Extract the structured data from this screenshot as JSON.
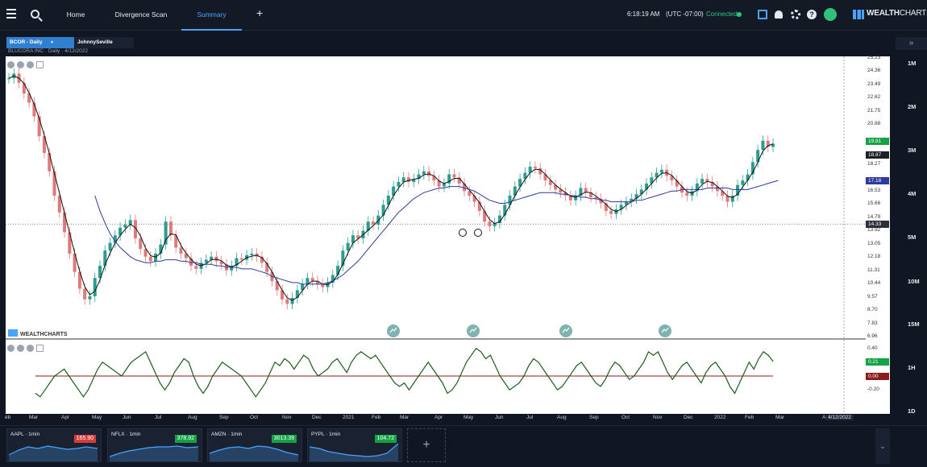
{
  "topbar": {
    "nav": [
      "Home",
      "Divergence Scan",
      "Summary"
    ],
    "active_nav": "Summary",
    "clock": "6:18:19 AM",
    "timezone": "(UTC -07:00)",
    "connection": "Connected",
    "brand_a": "WEALTH",
    "brand_b": "CHARTS",
    "icons": [
      "menu-icon",
      "search-icon",
      "plus-icon",
      "save-icon",
      "bell-icon",
      "gear-icon",
      "help-icon",
      "avatar-icon"
    ]
  },
  "chart_tabs": {
    "active": "BCOR - Daily",
    "inactive": "JohnnySeville"
  },
  "meta": "BLUCORA INC · Daily · 4/12/2022",
  "watermark": "WEALTHCHARTS",
  "y_axis": {
    "ticks": [
      "25.23",
      "24.36",
      "23.49",
      "22.62",
      "21.75",
      "20.88",
      "18.27",
      "16.53",
      "15.66",
      "14.79",
      "13.92",
      "13.05",
      "12.18",
      "11.31",
      "10.44",
      "9.57",
      "8.70",
      "7.83",
      "6.96"
    ],
    "badge_green": "19.81",
    "badge_dark": "18.87",
    "badge_blue": "17.18",
    "badge_gray": "14.33"
  },
  "osc_axis": {
    "ticks": [
      "0.40",
      "0.20",
      "-0.20"
    ],
    "badge_green": "0.21",
    "badge_red": "0.00"
  },
  "x_axis": {
    "labels": [
      "eb",
      "Mar",
      "Apr",
      "May",
      "Jun",
      "Jul",
      "Aug",
      "Sep",
      "Oct",
      "Nov",
      "Dec",
      "2021",
      "Feb",
      "Mar",
      "Apr",
      "May",
      "Jun",
      "Jul",
      "Aug",
      "Sep",
      "Oct",
      "Nov",
      "Dec",
      "2022",
      "Feb",
      "Mar",
      "Ap"
    ],
    "current_date": "4/12/2022"
  },
  "timeframes": [
    "1M",
    "2M",
    "3M",
    "4M",
    "5M",
    "10M",
    "15M",
    "1H",
    "1D",
    "1W"
  ],
  "mini_charts": [
    {
      "symbol": "AAPL · 1min",
      "price": "165.90",
      "direction": "down"
    },
    {
      "symbol": "NFLX · 1min",
      "price": "378.92",
      "direction": "up"
    },
    {
      "symbol": "AMZN · 1min",
      "price": "3013.39",
      "direction": "up"
    },
    {
      "symbol": "PYPL · 1min",
      "price": "104.72",
      "direction": "up"
    }
  ],
  "colors": {
    "accent": "#4aa3ff",
    "up": "#2a9d8f",
    "down": "#e07a7a",
    "ma_fast": "#111111",
    "ma_slow": "#2b3a9e",
    "osc": "#1d5c1d",
    "zero": "#8b1d1d"
  },
  "chart_data": {
    "type": "candlestick",
    "ylim": [
      6.96,
      25.23
    ],
    "price": [
      23.9,
      24.2,
      23.6,
      22.9,
      22.3,
      21.4,
      20.1,
      19.0,
      17.8,
      16.2,
      15.1,
      13.8,
      12.4,
      11.2,
      10.1,
      9.4,
      9.6,
      10.8,
      11.6,
      12.6,
      13.1,
      13.6,
      14.1,
      14.3,
      14.6,
      13.4,
      12.7,
      12.2,
      11.9,
      12.4,
      13.0,
      14.5,
      13.6,
      12.8,
      12.4,
      12.1,
      11.6,
      11.4,
      11.8,
      12.0,
      12.2,
      11.9,
      11.7,
      11.3,
      11.6,
      12.1,
      12.0,
      12.3,
      12.4,
      12.2,
      11.8,
      11.2,
      10.6,
      10.0,
      9.4,
      9.1,
      9.5,
      10.0,
      10.4,
      10.8,
      10.6,
      10.4,
      10.2,
      10.5,
      11.0,
      11.6,
      12.6,
      13.1,
      13.6,
      13.4,
      13.9,
      14.5,
      14.3,
      14.9,
      15.6,
      16.2,
      16.8,
      17.1,
      17.4,
      17.1,
      17.3,
      17.6,
      17.8,
      17.5,
      17.2,
      16.8,
      17.0,
      17.6,
      17.4,
      17.0,
      16.5,
      16.2,
      15.8,
      15.2,
      14.5,
      14.2,
      14.4,
      14.9,
      15.6,
      16.2,
      16.8,
      17.3,
      17.7,
      18.1,
      18.0,
      17.6,
      17.2,
      16.9,
      16.6,
      16.4,
      16.2,
      15.9,
      16.2,
      16.7,
      16.4,
      16.1,
      16.0,
      15.7,
      15.2,
      15.0,
      15.3,
      15.6,
      15.8,
      16.0,
      16.3,
      16.6,
      17.0,
      17.4,
      17.7,
      17.9,
      17.5,
      17.2,
      16.8,
      16.4,
      16.2,
      16.5,
      17.0,
      17.3,
      17.1,
      16.8,
      16.5,
      16.2,
      15.8,
      16.2,
      16.9,
      17.2,
      17.6,
      18.4,
      19.2,
      19.8,
      19.4,
      19.6
    ],
    "ma_slow": [
      null,
      null,
      null,
      null,
      null,
      null,
      null,
      null,
      null,
      null,
      null,
      null,
      null,
      null,
      null,
      null,
      null,
      16.2,
      15.2,
      14.4,
      13.7,
      13.2,
      12.8,
      12.5,
      12.2,
      12.0,
      11.9,
      11.8,
      11.8,
      11.9,
      11.9,
      12.0,
      12.0,
      12.0,
      11.9,
      11.9,
      11.8,
      11.8,
      11.7,
      11.7,
      11.7,
      11.6,
      11.6,
      11.5,
      11.5,
      11.5,
      11.4,
      11.4,
      11.4,
      11.3,
      11.2,
      11.1,
      10.9,
      10.8,
      10.7,
      10.6,
      10.5,
      10.5,
      10.4,
      10.4,
      10.4,
      10.4,
      10.4,
      10.5,
      10.6,
      10.8,
      11.0,
      11.3,
      11.6,
      11.9,
      12.3,
      12.7,
      13.1,
      13.5,
      13.9,
      14.3,
      14.7,
      15.1,
      15.4,
      15.7,
      16.0,
      16.2,
      16.4,
      16.5,
      16.6,
      16.7,
      16.7,
      16.8,
      16.8,
      16.8,
      16.7,
      16.6,
      16.5,
      16.3,
      16.1,
      15.9,
      15.8,
      15.7,
      15.7,
      15.8,
      15.9,
      16.0,
      16.1,
      16.2,
      16.3,
      16.4,
      16.4,
      16.4,
      16.4,
      16.3,
      16.3,
      16.2,
      16.2,
      16.1,
      16.1,
      16.0,
      16.0,
      15.9,
      15.9,
      15.8,
      15.8,
      15.8,
      15.8,
      15.8,
      15.9,
      15.9,
      16.0,
      16.1,
      16.2,
      16.3,
      16.4,
      16.5,
      16.5,
      16.6,
      16.6,
      16.6,
      16.6,
      16.6,
      16.7,
      16.7,
      16.7,
      16.7,
      16.7,
      16.6,
      16.6,
      16.6,
      16.6,
      16.7,
      16.8,
      16.9,
      17.0,
      17.1,
      17.2
    ],
    "oscillator": [
      -0.25,
      -0.3,
      -0.2,
      -0.1,
      0.0,
      0.05,
      0.1,
      0.0,
      -0.1,
      -0.2,
      -0.3,
      -0.2,
      -0.05,
      0.1,
      0.2,
      0.15,
      0.1,
      0.05,
      0.0,
      0.1,
      0.2,
      0.25,
      0.3,
      0.35,
      0.2,
      0.05,
      -0.1,
      -0.2,
      -0.1,
      0.05,
      0.15,
      0.25,
      0.2,
      0.0,
      -0.15,
      -0.25,
      -0.15,
      0.0,
      0.1,
      0.2,
      0.15,
      0.1,
      0.05,
      0.0,
      -0.1,
      -0.2,
      -0.3,
      -0.2,
      -0.1,
      0.05,
      0.2,
      0.15,
      0.25,
      0.2,
      0.1,
      0.2,
      0.3,
      0.25,
      0.1,
      0.0,
      0.05,
      0.1,
      0.2,
      0.25,
      0.15,
      0.05,
      0.2,
      0.3,
      0.35,
      0.3,
      0.25,
      0.3,
      0.2,
      0.1,
      0.0,
      -0.1,
      -0.15,
      -0.1,
      -0.2,
      -0.1,
      0.0,
      0.1,
      0.2,
      0.1,
      0.0,
      -0.1,
      -0.25,
      -0.2,
      -0.1,
      0.05,
      0.2,
      0.3,
      0.4,
      0.35,
      0.25,
      0.3,
      0.15,
      0.0,
      -0.1,
      -0.2,
      -0.15,
      -0.1,
      0.0,
      0.15,
      0.25,
      0.2,
      0.1,
      0.0,
      -0.1,
      -0.2,
      -0.15,
      -0.05,
      0.05,
      0.15,
      0.2,
      0.1,
      0.0,
      -0.1,
      -0.15,
      -0.05,
      0.1,
      0.2,
      0.15,
      0.05,
      -0.05,
      0.0,
      0.1,
      0.2,
      0.35,
      0.3,
      0.35,
      0.2,
      0.05,
      -0.05,
      0.05,
      0.15,
      0.2,
      0.1,
      0.0,
      -0.1,
      0.05,
      0.15,
      0.2,
      0.1,
      0.0,
      -0.15,
      -0.25,
      -0.1,
      0.05,
      0.2,
      0.1,
      0.25,
      0.35,
      0.3,
      0.21
    ]
  }
}
